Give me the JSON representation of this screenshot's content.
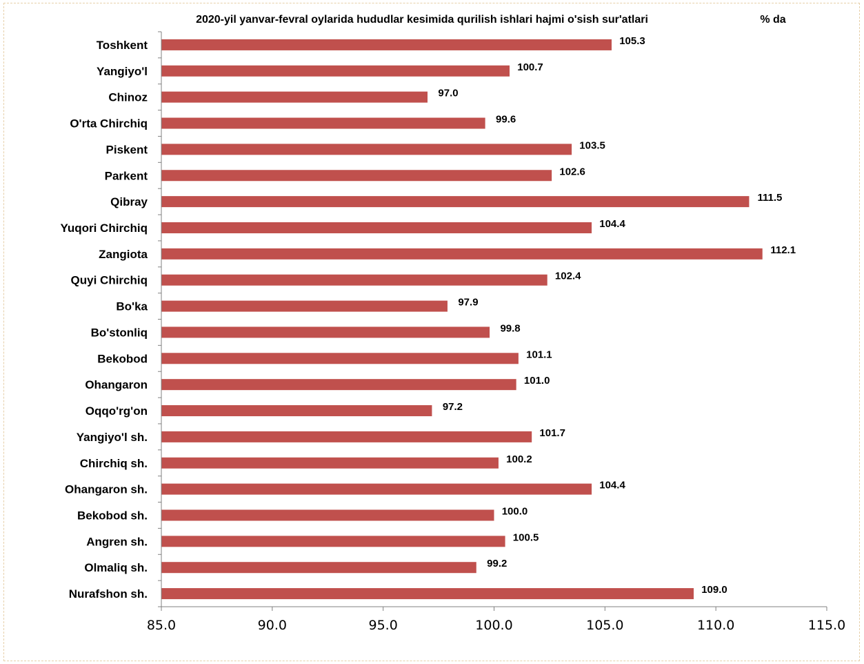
{
  "chart_data": {
    "type": "bar",
    "orientation": "horizontal",
    "title": "2020-yil yanvar-fevral oylarida  hududlar kesimida qurilish ishlari hajmi o'sish sur'atlari",
    "unit_label": "% da",
    "categories": [
      "Toshkent",
      "Yangiyo'l",
      "Chinoz",
      "O'rta Chirchiq",
      "Piskent",
      "Parkent",
      "Qibray",
      "Yuqori Chirchiq",
      "Zangiota",
      "Quyi Chirchiq",
      "Bo'ka",
      "Bo'stonliq",
      "Bekobod",
      "Ohangaron",
      "Oqqo'rg'on",
      "Yangiyo'l sh.",
      "Chirchiq sh.",
      "Ohangaron sh.",
      "Bekobod sh.",
      "Angren sh.",
      "Olmaliq sh.",
      "Nurafshon sh."
    ],
    "values": [
      105.3,
      100.7,
      97.0,
      99.6,
      103.5,
      102.6,
      111.5,
      104.4,
      112.1,
      102.4,
      97.9,
      99.8,
      101.1,
      101.0,
      97.2,
      101.7,
      100.2,
      104.4,
      100.0,
      100.5,
      99.2,
      109.0
    ],
    "data_labels": [
      "105.3",
      "100.7",
      "97.0",
      "99.6",
      "103.5",
      "102.6",
      "111.5",
      "104.4",
      "112.1",
      "102.4",
      "97.9",
      "99.8",
      "101.1",
      "101.0",
      "97.2",
      "101.7",
      "100.2",
      "104.4",
      "100.0",
      "100.5",
      "99.2",
      "109.0"
    ],
    "xlim": [
      85.0,
      115.0
    ],
    "xticks": [
      85.0,
      90.0,
      95.0,
      100.0,
      105.0,
      110.0,
      115.0
    ],
    "xtick_labels": [
      "85.0",
      "90.0",
      "95.0",
      "100.0",
      "105.0",
      "110.0",
      "115.0"
    ],
    "bar_color": "#c0504d",
    "grid": false,
    "legend": "none"
  }
}
